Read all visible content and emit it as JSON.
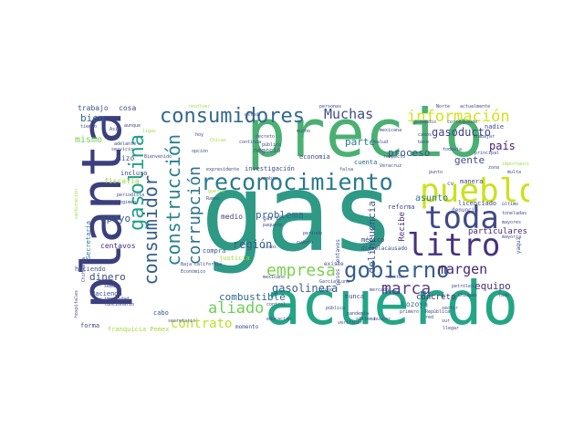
{
  "words": {
    "gas": "gas",
    "precio": "precio",
    "planta": "planta",
    "acuerdo": "acuerdo",
    "pueblo": "pueblo",
    "toda": "toda",
    "litro": "litro",
    "reconocimiento": "reconocimiento",
    "consumidores": "consumidores",
    "gobierno": "gobierno",
    "gasolina": "gasolina",
    "consumidor": "consumidor",
    "construccion": "construcción",
    "corrupcion": "corrupción",
    "empresa": "empresa",
    "aliado": "aliado",
    "contrato": "contrato",
    "marca": "marca",
    "margen": "margen",
    "informacion": "información",
    "muchas": "Muchas",
    "gasoducto": "gasoducto",
    "pais": "país",
    "gente": "gente",
    "parte": "parte",
    "proceso": "proceso",
    "problema": "problema",
    "region": "región",
    "combustible": "combustible",
    "gasolinera": "gasolinera",
    "delincuencia": "delincuencia",
    "equipo": "equipo",
    "apoyo": "apoyo",
    "dinero": "dinero",
    "bien": "bien",
    "mismo": "mismo",
    "concreto": "concreto",
    "particulares": "particulares",
    "recibe": "Recibe",
    "asunto": "asunto",
    "trabajo": "trabajo",
    "cosa": "cosa",
    "medio": "medio",
    "hizo": "hizo",
    "incluso": "incluso",
    "fiscalia": "fiscalía",
    "centavos": "centavos",
    "haciendo": "haciendo",
    "hacienda": "Hacienda",
    "secretaria": "Secretaría",
    "cuenta": "cuenta",
    "compra": "compra",
    "justicia": "justicia",
    "medico": "médico",
    "lozoya": "Lozoya",
    "nunca": "nunca",
    "economia": "economía",
    "investigacion": "investigación",
    "manera": "manera",
    "negocio": "negocio",
    "cabo": "cabo",
    "forma": "forma",
    "momento": "momento",
    "franquicia_pemex": "franquicia Pemex",
    "licenciado": "licenciado",
    "reforma": "reforma",
    "nadie": "nadie",
    "pesos_centavos": "pesos centavos",
    "existe": "existe",
    "dieselacausado": "dieselacausado",
    "denuncia": "denuncia",
    "gas_lp": "gas LP",
    "mexicana": "mexicana",
    "publico": "público",
    "publica": "pública",
    "pandemia": "pandemia",
    "salud": "salud",
    "llegar": "llegar",
    "chiapas": "Chiapas",
    "secretario": "secretario",
    "semana": "semana",
    "impunidad": "impunidad",
    "funcionario": "funcionario",
    "periodista": "periodista",
    "regimen": "régimen",
    "tiempo": "tiempo",
    "aunque": "aunque",
    "servicio": "servicio",
    "adelante": "adelante",
    "bienvenido": "Bienvenido",
    "decreto": "decreto",
    "expresidente": "expresidente",
    "nombre": "nombre",
    "continua": "continúa",
    "paquete": "paquete",
    "mexicano": "mexicano",
    "periodo": "periodo",
    "cuanto": "cuánto",
    "sisos": "sisos",
    "baja_california": "Baja California",
    "economico": "Económico",
    "control": "control",
    "primero": "primero",
    "republica": "República",
    "red": "red",
    "verificar": "verificar",
    "buscar": "buscar",
    "petroleo": "petróleo",
    "lado": "lado",
    "mayoria": "mayoría",
    "yaqui": "yaqui",
    "cv": "cv",
    "norte": "Norte",
    "actualmente": "actualmente",
    "promedio": "promedio",
    "corresponde": "corresponde",
    "respecto": "respecto",
    "base": "base",
    "casos": "casos",
    "todavia": "todavía",
    "principal": "principal",
    "veracruz": "Veracruz",
    "falsa": "falsa",
    "doctor": "doctor",
    "resolver": "resolver",
    "ligas": "ligas",
    "opcion": "opción",
    "hoy": "hoy",
    "chicas": "Chicas",
    "sur": "sur",
    "chihuahua": "Chihuahua",
    "carburacion": "carburación",
    "importancia": "importancia",
    "hospitales": "hospitales",
    "sector": "sector",
    "punto": "punto",
    "multa": "multa",
    "asia": "Asia",
    "garcia_luna": "García Luna",
    "grupo": "grupo",
    "mercado": "mercado",
    "trabajar": "trabajar",
    "ultimo": "último",
    "toneladas": "toneladas",
    "mayores": "mayores",
    "educacion": "educación",
    "guerra": "guerra",
    "ramos": "Ramos",
    "zona": "zona",
    "sistema": "sistema",
    "mucho": "mucho",
    "usted": "usted",
    "personas": "personas"
  }
}
